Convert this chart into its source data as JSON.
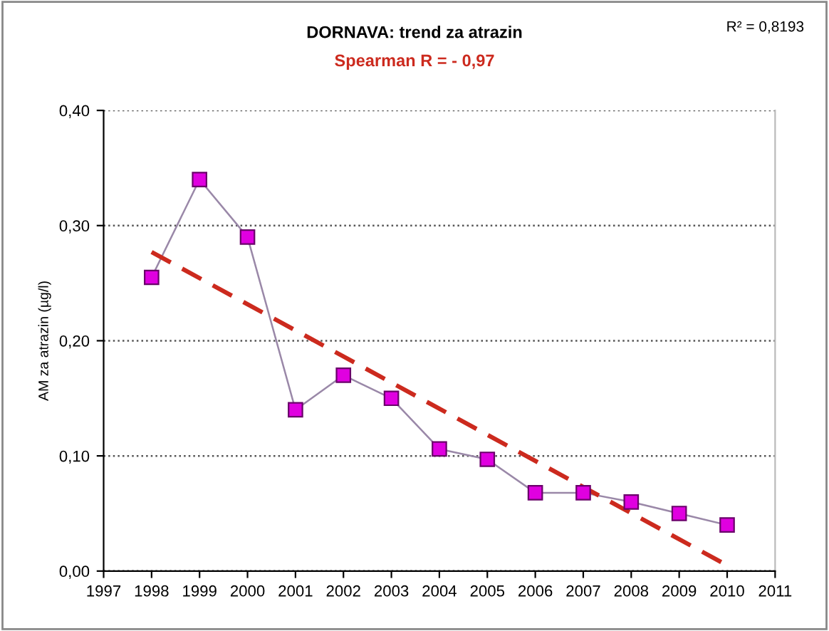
{
  "chart_data": {
    "type": "line",
    "title": "DORNAVA: trend za atrazin",
    "subtitle": "Spearman R = - 0,97",
    "ylabel": "AM za atrazin (µg/l)",
    "annotations": [
      "R² = 0,8193"
    ],
    "x": [
      1998,
      1999,
      2000,
      2001,
      2002,
      2003,
      2004,
      2005,
      2006,
      2007,
      2008,
      2009,
      2010
    ],
    "series": [
      {
        "color": "#e000e0",
        "values": [
          0.255,
          0.34,
          0.29,
          0.14,
          0.17,
          0.15,
          0.106,
          0.097,
          0.068,
          0.068,
          0.06,
          0.05,
          0.04
        ],
        "marker": "square",
        "line_style": "solid"
      },
      {
        "type": "line",
        "color": "#cc2a1e",
        "x": [
          1998,
          2010
        ],
        "values": [
          0.277,
          0.005
        ],
        "marker": "none",
        "line_style": "dashed"
      }
    ],
    "xlim": [
      1997,
      2011
    ],
    "xticks": [
      1997,
      1998,
      1999,
      2000,
      2001,
      2002,
      2003,
      2004,
      2005,
      2006,
      2007,
      2008,
      2009,
      2010,
      2011
    ],
    "ylim": [
      0,
      0.4
    ],
    "yticks": [
      {
        "value": 0,
        "label": "0,00"
      },
      {
        "value": 0.1,
        "label": "0,10"
      },
      {
        "value": 0.2,
        "label": "0,20"
      },
      {
        "value": 0.3,
        "label": "0,30"
      },
      {
        "value": 0.4,
        "label": "0,40"
      }
    ],
    "grid": "y",
    "legend": false
  }
}
